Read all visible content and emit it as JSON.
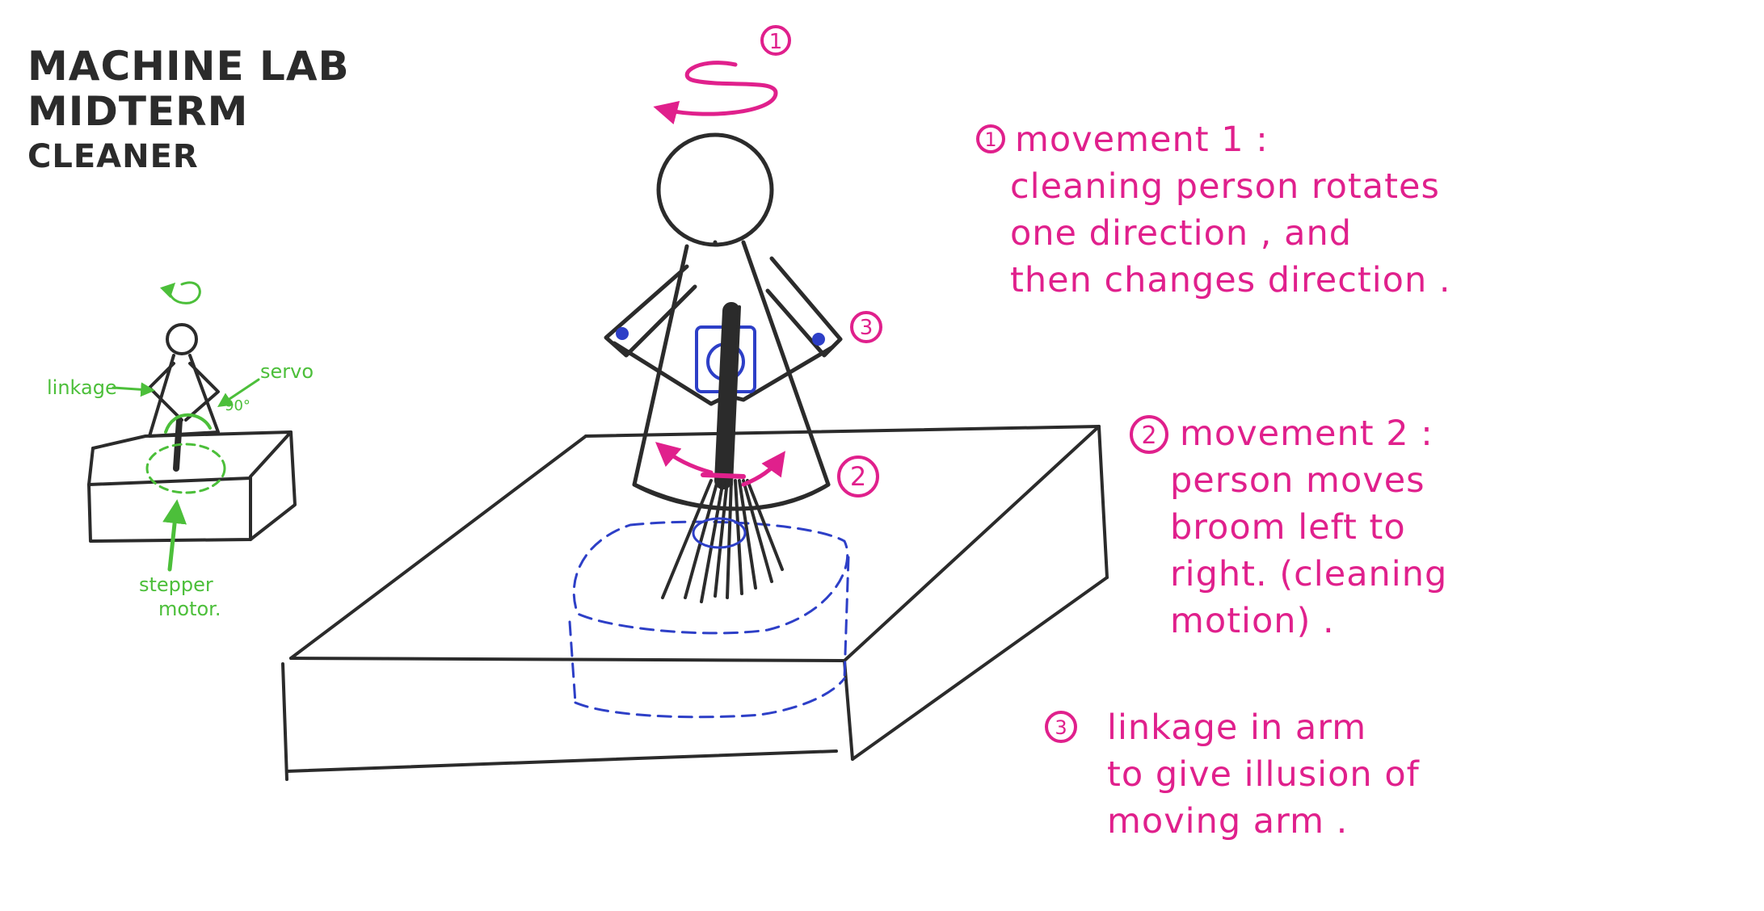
{
  "title": {
    "line1": "MACHINE LAB",
    "line2": "MIDTERM",
    "line3": "CLEANER"
  },
  "callout_markers": {
    "top": "1",
    "arm": "3",
    "body": "2"
  },
  "small_sketch_labels": {
    "linkage": "linkage",
    "servo": "servo",
    "angle": "90°",
    "stepper_line1": "stepper",
    "stepper_line2": "motor."
  },
  "notes": {
    "movement1": {
      "number": "1",
      "heading": "movement 1 :",
      "lines": [
        "cleaning person rotates",
        "one direction , and",
        "then changes direction ."
      ]
    },
    "movement2": {
      "number": "2",
      "heading": "movement 2 :",
      "lines": [
        "person moves",
        "broom left to",
        "right. (cleaning",
        "motion) ."
      ]
    },
    "movement3": {
      "number": "3",
      "lines": [
        "linkage in arm",
        "to give illusion of",
        "moving arm ."
      ]
    }
  },
  "colors": {
    "ink": "#2b2b2b",
    "magenta": "#e0208c",
    "green": "#4cbf3a",
    "blue": "#2d3fc7"
  }
}
